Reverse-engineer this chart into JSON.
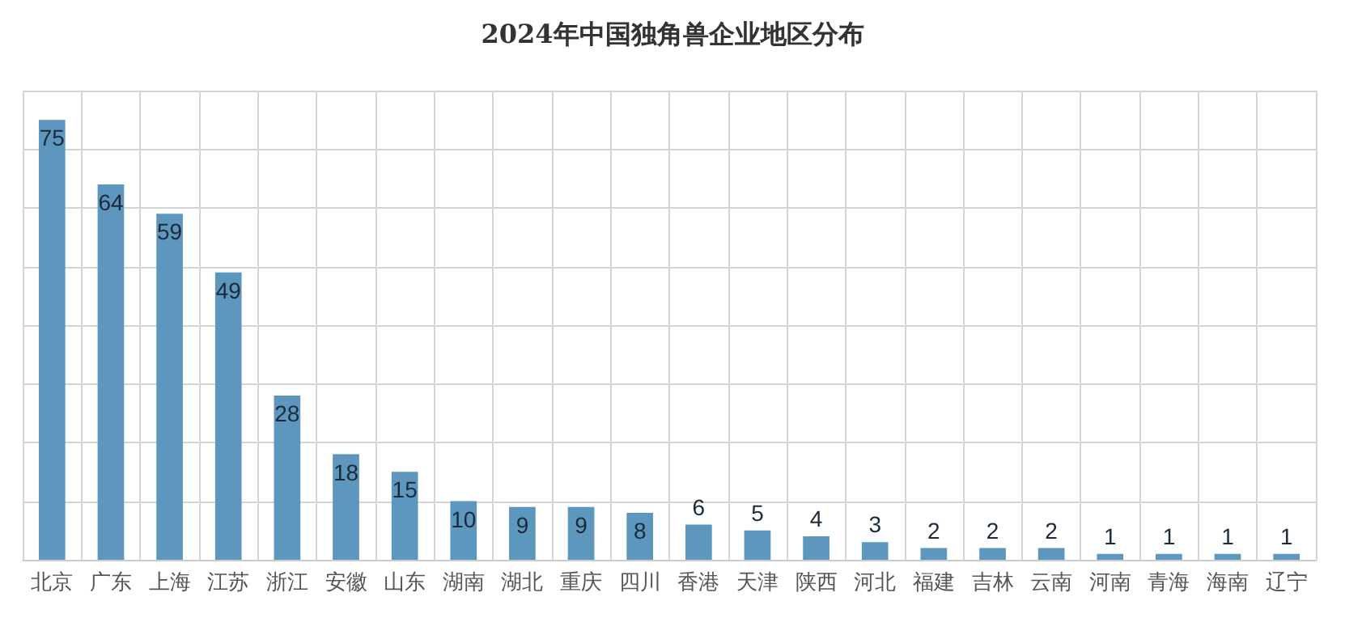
{
  "chart_data": {
    "type": "bar",
    "title": "2024年中国独角兽企业地区分布",
    "categories": [
      "北京",
      "广东",
      "上海",
      "江苏",
      "浙江",
      "安徽",
      "山东",
      "湖南",
      "湖北",
      "重庆",
      "四川",
      "香港",
      "天津",
      "陕西",
      "河北",
      "福建",
      "吉林",
      "云南",
      "河南",
      "青海",
      "海南",
      "辽宁"
    ],
    "values": [
      75,
      64,
      59,
      49,
      28,
      18,
      15,
      10,
      9,
      9,
      8,
      6,
      5,
      4,
      3,
      2,
      2,
      2,
      1,
      1,
      1,
      1
    ],
    "color": "#5e97bd",
    "ylim": [
      0,
      80
    ],
    "yticks": [
      {
        "value": 0,
        "label": null
      },
      {
        "value": 10,
        "label": null
      },
      {
        "value": 20,
        "label": null
      },
      {
        "value": 30,
        "label": null
      },
      {
        "value": 40,
        "label": null
      },
      {
        "value": 50,
        "label": null
      },
      {
        "value": 60,
        "label": null
      },
      {
        "value": 70,
        "label": null
      },
      {
        "value": 80,
        "label": null
      }
    ],
    "tick_labels": "x",
    "grid": true,
    "data_labels": true
  }
}
